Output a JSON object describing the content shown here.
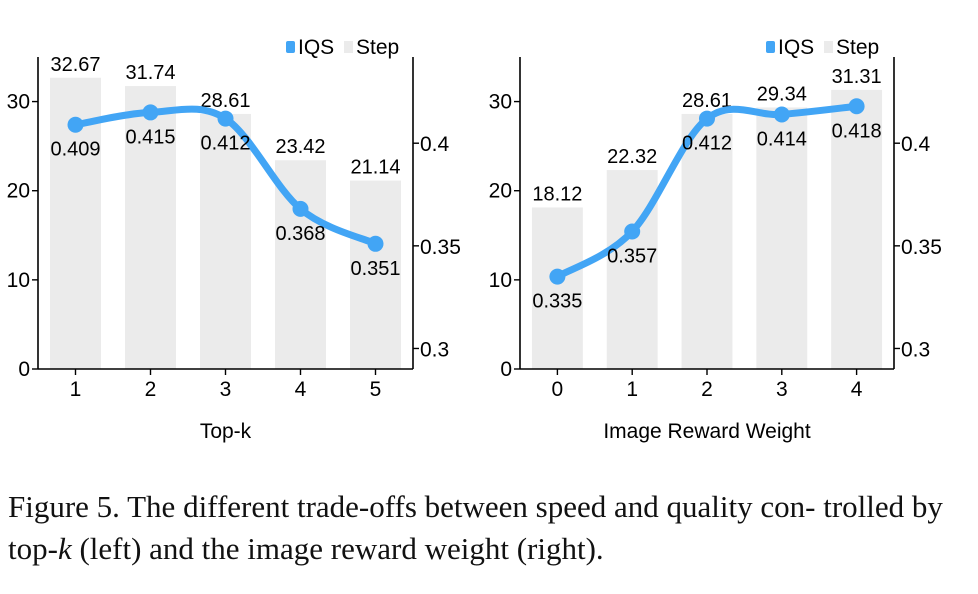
{
  "chart_data": [
    {
      "type": "bar+line",
      "xlabel": "Top-k",
      "categories": [
        "1",
        "2",
        "3",
        "4",
        "5"
      ],
      "legend": {
        "placement": "top-right",
        "line_label": "IQS",
        "bar_label": "Step"
      },
      "bar_series": {
        "name": "Step",
        "values": [
          32.67,
          31.74,
          28.61,
          23.42,
          21.14
        ],
        "labels": [
          "32.67",
          "31.74",
          "28.61",
          "23.42",
          "21.14"
        ]
      },
      "line_series": {
        "name": "IQS",
        "values": [
          0.409,
          0.415,
          0.412,
          0.368,
          0.351
        ],
        "labels": [
          "0.409",
          "0.415",
          "0.412",
          "0.368",
          "0.351"
        ]
      },
      "y_left": {
        "lim": [
          0,
          35
        ],
        "ticks": [
          0,
          10,
          20,
          30
        ],
        "tick_labels": [
          "0",
          "10",
          "20",
          "30"
        ]
      },
      "y_right": {
        "lim": [
          0.29,
          0.442
        ],
        "ticks": [
          0.3,
          0.35,
          0.4
        ],
        "tick_labels": [
          "0.3",
          "0.35",
          "0.4"
        ]
      },
      "grid": false
    },
    {
      "type": "bar+line",
      "xlabel": "Image Reward Weight",
      "categories": [
        "0",
        "1",
        "2",
        "3",
        "4"
      ],
      "legend": {
        "placement": "top-right",
        "line_label": "IQS",
        "bar_label": "Step"
      },
      "bar_series": {
        "name": "Step",
        "values": [
          18.12,
          22.32,
          28.61,
          29.34,
          31.31
        ],
        "labels": [
          "18.12",
          "22.32",
          "28.61",
          "29.34",
          "31.31"
        ]
      },
      "line_series": {
        "name": "IQS",
        "values": [
          0.335,
          0.357,
          0.412,
          0.414,
          0.418
        ],
        "labels": [
          "0.335",
          "0.357",
          "0.412",
          "0.414",
          "0.418"
        ]
      },
      "y_left": {
        "lim": [
          0,
          35
        ],
        "ticks": [
          0,
          10,
          20,
          30
        ],
        "tick_labels": [
          "0",
          "10",
          "20",
          "30"
        ]
      },
      "y_right": {
        "lim": [
          0.29,
          0.442
        ],
        "ticks": [
          0.3,
          0.35,
          0.4
        ],
        "tick_labels": [
          "0.3",
          "0.35",
          "0.4"
        ]
      },
      "grid": false
    }
  ],
  "colors": {
    "line": "#42a5f5",
    "bar": "#ebebeb",
    "axis": "#000000"
  },
  "caption": {
    "prefix": "Figure 5. The different trade-offs between speed and quality con- trolled by top-",
    "k": "k",
    "suffix": " (left) and the image reward weight (right)."
  }
}
